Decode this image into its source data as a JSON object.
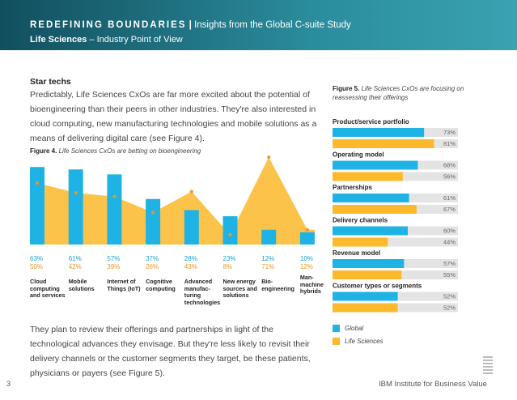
{
  "header": {
    "title": "REDEFINING BOUNDARIES",
    "separator": "|",
    "subtitle_main": "Insights from the Global C-suite Study",
    "industry": "Life Sciences",
    "industry_rest": "– Industry Point of View"
  },
  "section": {
    "heading": "Star techs",
    "paragraph": "Predictably, Life Sciences CxOs are far more excited about the potential of bioengineering than their peers in other industries. They're also interested in cloud computing, new manufacturing technologies and mobile solutions as a means of delivering digital care (see Figure 4).",
    "paragraph2": "They plan to review their offerings and partnerships in light of the technological advances they envisage. But they're less likely to revisit their delivery channels or the customer segments they target, be these patients, physicians or payers (see Figure 5)."
  },
  "chart_data": [
    {
      "type": "bar",
      "figure_label": "Figure 4.",
      "title": "Life Sciences CxOs are betting on bioengineering",
      "categories": [
        "Cloud computing and services",
        "Mobile solutions",
        "Internet of Things (IoT)",
        "Cognitive computing",
        "Advanced manufac-turing technologies",
        "New energy sources and solutions",
        "Bio-engineering",
        "Man-machine hybrids"
      ],
      "series": [
        {
          "name": "Global",
          "color": "#1fb3e5",
          "values": [
            63,
            61,
            57,
            37,
            28,
            23,
            12,
            10
          ],
          "value_labels": [
            "63%",
            "61%",
            "57%",
            "37%",
            "28%",
            "23%",
            "12%",
            "10%"
          ]
        },
        {
          "name": "Life Sciences",
          "color": "#fbb92b",
          "values": [
            50,
            42,
            39,
            26,
            43,
            8,
            71,
            12
          ],
          "value_labels": [
            "50%",
            "42%",
            "39%",
            "26%",
            "43%",
            "8%",
            "71%",
            "12%"
          ]
        }
      ]
    },
    {
      "type": "hbar",
      "figure_label": "Figure 5.",
      "title": "Life Sciences CxOs are focusing on reassessing their offerings",
      "categories": [
        "Product/service portfolio",
        "Operating model",
        "Partnerships",
        "Delivery channels",
        "Revenue model",
        "Customer types or segments"
      ],
      "series": [
        {
          "name": "Global",
          "color": "#1fb3e5",
          "values": [
            73,
            68,
            61,
            60,
            57,
            52
          ],
          "value_labels": [
            "73%",
            "68%",
            "61%",
            "60%",
            "57%",
            "52%"
          ]
        },
        {
          "name": "Life Sciences",
          "color": "#fbb92b",
          "values": [
            81,
            56,
            67,
            44,
            55,
            52
          ],
          "value_labels": [
            "81%",
            "56%",
            "67%",
            "44%",
            "55%",
            "52%"
          ]
        }
      ]
    }
  ],
  "footer": {
    "page": "3",
    "brand": "IBM Institute for Business Value"
  }
}
